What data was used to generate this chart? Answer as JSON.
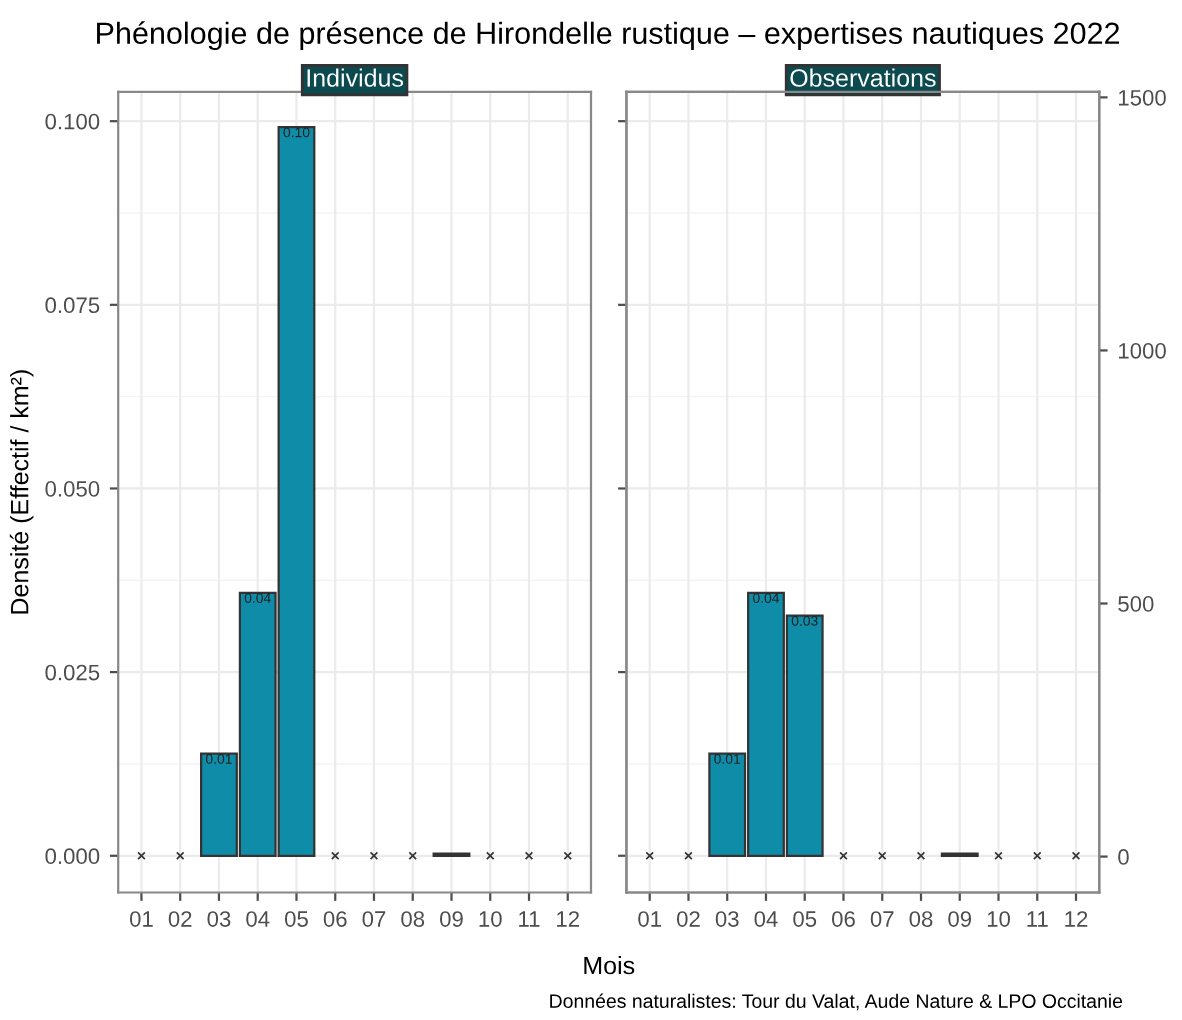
{
  "chart_data": [
    {
      "type": "bar",
      "title": "Phénologie de présence de Hirondelle rustique – expertises nautiques 2022",
      "subtitle": "Individus",
      "xlabel": "Mois",
      "ylabel": "Densité (Effectif / km²)",
      "categories": [
        "01",
        "02",
        "03",
        "04",
        "05",
        "06",
        "07",
        "08",
        "09",
        "10",
        "11",
        "12"
      ],
      "series": [
        {
          "color": "#0e8ca8",
          "values": [
            null,
            null,
            0.0139,
            0.0358,
            0.0992,
            null,
            null,
            null,
            0.0003,
            null,
            null,
            null
          ],
          "value_labels": [
            null,
            null,
            "0.01",
            "0.04",
            "0.10",
            null,
            null,
            null,
            null,
            null,
            null,
            null
          ]
        },
        {
          "type": "scatter",
          "color": "#333333",
          "marker": "cross",
          "values": [
            0,
            0,
            null,
            null,
            null,
            0,
            0,
            0,
            null,
            0,
            0,
            0
          ]
        }
      ],
      "ylim": [
        -0.005,
        0.104
      ],
      "yticks": [
        {
          "value": 0,
          "label": "0.000"
        },
        0.025,
        {
          "value": 0.05,
          "label": "0.050"
        },
        0.075,
        {
          "value": 0.1,
          "label": "0.100"
        }
      ],
      "grid": true
    },
    {
      "type": "bar",
      "subtitle": "Observations",
      "annotations": [
        "Données naturalistes: Tour du Valat, Aude Nature & LPO Occitanie"
      ],
      "categories": [
        "01",
        "02",
        "03",
        "04",
        "05",
        "06",
        "07",
        "08",
        "09",
        "10",
        "11",
        "12"
      ],
      "series": [
        {
          "color": "#0e8ca8",
          "values": [
            null,
            null,
            0.0139,
            0.0358,
            0.0327,
            null,
            null,
            null,
            0.0003,
            null,
            null,
            null
          ],
          "value_labels": [
            null,
            null,
            "0.01",
            "0.04",
            "0.03",
            null,
            null,
            null,
            null,
            null,
            null,
            null
          ]
        },
        {
          "type": "scatter",
          "color": "#333333",
          "marker": "cross",
          "values": [
            0,
            0,
            null,
            null,
            null,
            0,
            0,
            0,
            null,
            0,
            0,
            0
          ]
        }
      ],
      "ylim": [
        -0.005,
        0.104
      ],
      "y2lim": [
        -71,
        1511
      ],
      "y2ticks": [
        0,
        500,
        1000,
        1500
      ],
      "tick_labels": [
        "x",
        "y2"
      ],
      "grid": true
    }
  ]
}
